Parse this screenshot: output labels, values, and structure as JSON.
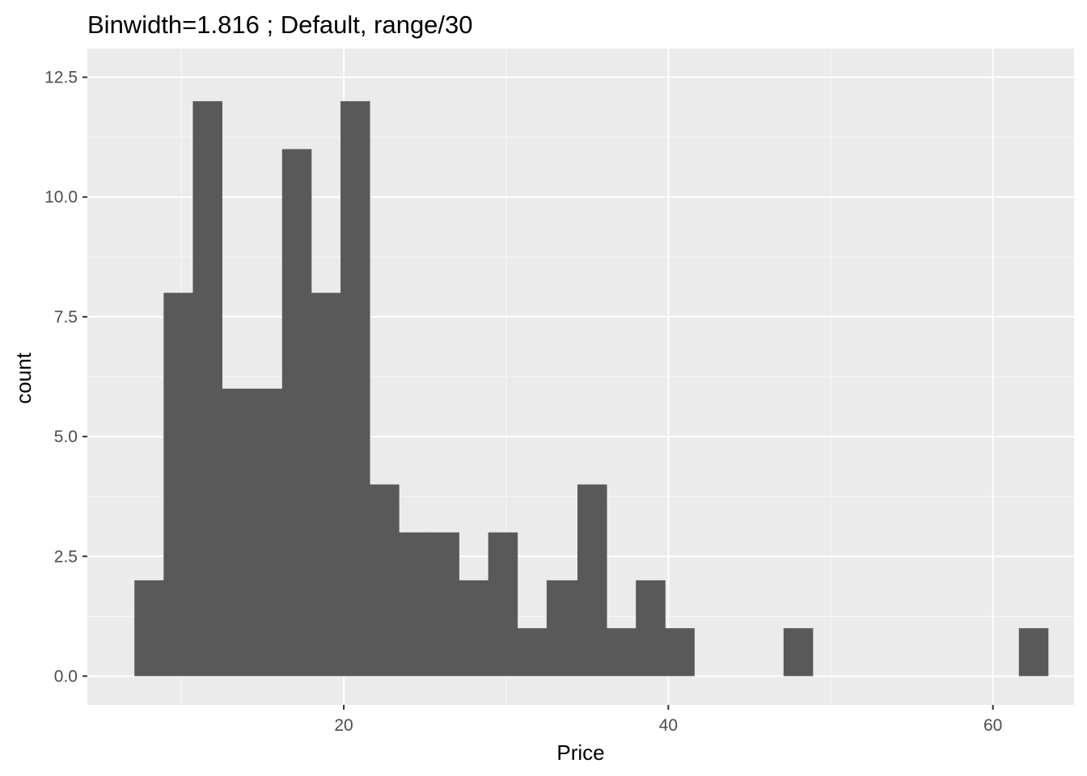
{
  "chart_data": {
    "type": "bar",
    "title": "Binwidth=1.816 ; Default, range/30",
    "xlabel": "Price",
    "ylabel": "count",
    "xlim": [
      4.2,
      65.0
    ],
    "ylim": [
      -0.6,
      13.1
    ],
    "x_ticks": [
      20,
      40,
      60
    ],
    "x_tick_labels": [
      "20",
      "40",
      "60"
    ],
    "y_ticks": [
      0,
      2.5,
      5,
      7.5,
      10,
      12.5
    ],
    "y_tick_labels": [
      "0.0",
      "2.5",
      "5.0",
      "7.5",
      "10.0",
      "12.5"
    ],
    "grid": true,
    "panel_background": "#ebebeb",
    "grid_color": "#ffffff",
    "bar_color": "#595959",
    "bins": [
      {
        "x0": 7.1,
        "x1": 8.9,
        "count": 2
      },
      {
        "x0": 8.9,
        "x1": 10.7,
        "count": 8
      },
      {
        "x0": 10.7,
        "x1": 12.5,
        "count": 12
      },
      {
        "x0": 12.5,
        "x1": 14.4,
        "count": 6
      },
      {
        "x0": 14.4,
        "x1": 16.2,
        "count": 6
      },
      {
        "x0": 16.2,
        "x1": 18.0,
        "count": 11
      },
      {
        "x0": 18.0,
        "x1": 19.8,
        "count": 8
      },
      {
        "x0": 19.8,
        "x1": 21.6,
        "count": 12
      },
      {
        "x0": 21.6,
        "x1": 23.4,
        "count": 4
      },
      {
        "x0": 23.4,
        "x1": 25.3,
        "count": 3
      },
      {
        "x0": 25.3,
        "x1": 27.1,
        "count": 3
      },
      {
        "x0": 27.1,
        "x1": 28.9,
        "count": 2
      },
      {
        "x0": 28.9,
        "x1": 30.7,
        "count": 3
      },
      {
        "x0": 30.7,
        "x1": 32.5,
        "count": 1
      },
      {
        "x0": 32.5,
        "x1": 34.4,
        "count": 2
      },
      {
        "x0": 34.4,
        "x1": 36.2,
        "count": 4
      },
      {
        "x0": 36.2,
        "x1": 38.0,
        "count": 1
      },
      {
        "x0": 38.0,
        "x1": 39.8,
        "count": 2
      },
      {
        "x0": 39.8,
        "x1": 41.6,
        "count": 1
      },
      {
        "x0": 41.6,
        "x1": 43.4,
        "count": 0
      },
      {
        "x0": 43.4,
        "x1": 45.3,
        "count": 0
      },
      {
        "x0": 45.3,
        "x1": 47.1,
        "count": 0
      },
      {
        "x0": 47.1,
        "x1": 48.9,
        "count": 1
      },
      {
        "x0": 48.9,
        "x1": 50.7,
        "count": 0
      },
      {
        "x0": 50.7,
        "x1": 52.5,
        "count": 0
      },
      {
        "x0": 52.5,
        "x1": 54.4,
        "count": 0
      },
      {
        "x0": 54.4,
        "x1": 56.2,
        "count": 0
      },
      {
        "x0": 56.2,
        "x1": 58.0,
        "count": 0
      },
      {
        "x0": 58.0,
        "x1": 59.8,
        "count": 0
      },
      {
        "x0": 59.8,
        "x1": 61.6,
        "count": 0
      },
      {
        "x0": 61.6,
        "x1": 63.4,
        "count": 1
      }
    ]
  }
}
